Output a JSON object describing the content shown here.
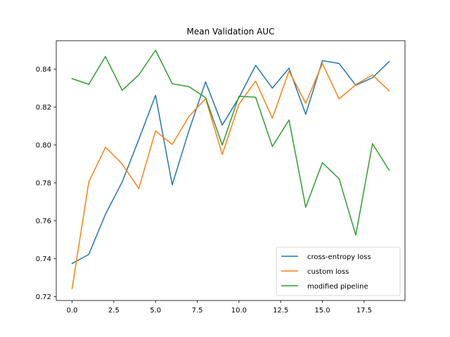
{
  "chart_data": {
    "type": "line",
    "title": "Mean Validation AUC",
    "xlabel": "",
    "ylabel": "",
    "xlim": [
      -0.95,
      19.95
    ],
    "ylim": [
      0.718,
      0.855
    ],
    "xticks": [
      0,
      2.5,
      5,
      7.5,
      10,
      12.5,
      15,
      17.5
    ],
    "xtick_labels": [
      "0.0",
      "2.5",
      "5.0",
      "7.5",
      "10.0",
      "12.5",
      "15.0",
      "17.5"
    ],
    "yticks": [
      0.72,
      0.74,
      0.76,
      0.78,
      0.8,
      0.82,
      0.84
    ],
    "ytick_labels": [
      "0.72",
      "0.74",
      "0.76",
      "0.78",
      "0.80",
      "0.82",
      "0.84"
    ],
    "grid": false,
    "legend_position": "lower-right",
    "x": [
      0,
      1,
      2,
      3,
      4,
      5,
      6,
      7,
      8,
      9,
      10,
      11,
      12,
      13,
      14,
      15,
      16,
      17,
      18,
      19
    ],
    "series": [
      {
        "name": "cross-entropy loss",
        "color": "#1f77b4",
        "values": [
          0.7375,
          0.7423,
          0.7635,
          0.7805,
          0.803,
          0.8262,
          0.779,
          0.8075,
          0.8333,
          0.8105,
          0.825,
          0.842,
          0.83,
          0.8405,
          0.8162,
          0.8445,
          0.843,
          0.8315,
          0.8355,
          0.844
        ]
      },
      {
        "name": "custom loss",
        "color": "#ff7f0e",
        "values": [
          0.7243,
          0.7805,
          0.7988,
          0.79,
          0.777,
          0.8075,
          0.8003,
          0.815,
          0.8245,
          0.795,
          0.8215,
          0.8337,
          0.8142,
          0.839,
          0.822,
          0.843,
          0.8243,
          0.8318,
          0.837,
          0.8285
        ]
      },
      {
        "name": "modified pipeline",
        "color": "#2ca02c",
        "values": [
          0.835,
          0.832,
          0.8467,
          0.8288,
          0.837,
          0.85,
          0.8323,
          0.8308,
          0.825,
          0.8,
          0.8257,
          0.8252,
          0.7992,
          0.8132,
          0.7672,
          0.7907,
          0.7822,
          0.7525,
          0.8007,
          0.7867
        ]
      }
    ]
  }
}
